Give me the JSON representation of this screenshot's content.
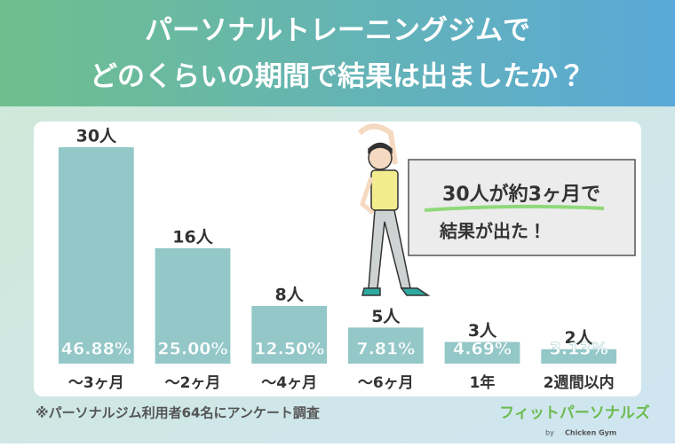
{
  "chart_data": {
    "type": "bar",
    "title": [
      "パーソナルトレーニングジムで",
      "どのくらいの期間で結果は出ましたか？"
    ],
    "categories": [
      "～3ヶ月",
      "～2ヶ月",
      "～4ヶ月",
      "～6ヶ月",
      "1年",
      "2週間以内"
    ],
    "values": [
      30,
      16,
      8,
      5,
      3,
      2
    ],
    "value_labels": [
      "30人",
      "16人",
      "8人",
      "5人",
      "3人",
      "2人"
    ],
    "percent_labels": [
      "46.88%",
      "25.00%",
      "12.50%",
      "7.81%",
      "4.69%",
      "3.13%"
    ],
    "color": "#94c7c8",
    "ylim": [
      0,
      30
    ],
    "callout": [
      "30人が約3ヶ月で",
      "結果が出た！"
    ],
    "footnote": "※パーソナルジム利用者64名にアンケート調査",
    "logo": {
      "name": "フィットパーソナルズ",
      "by": "by",
      "brand": "Chicken Gym"
    }
  }
}
